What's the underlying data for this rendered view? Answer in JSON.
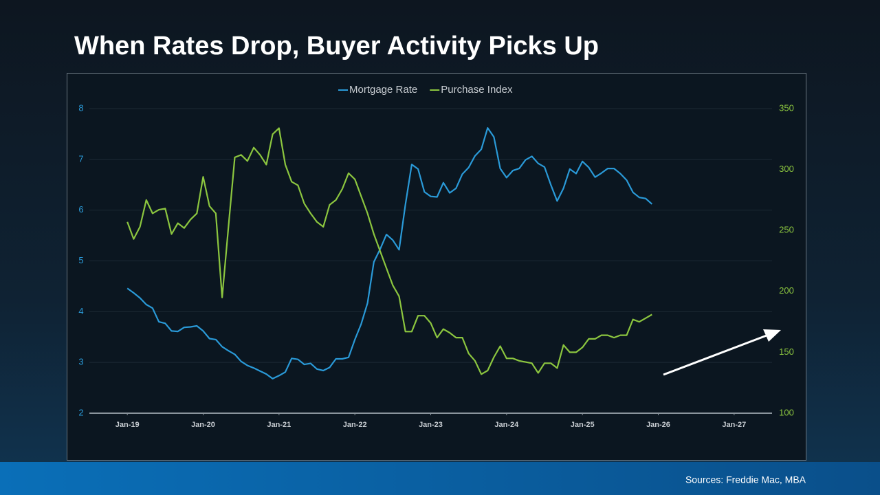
{
  "chart_data": {
    "type": "line",
    "title": "When Rates Drop, Buyer Activity Picks Up",
    "source": "Sources: Freddie Mac, MBA",
    "x": [
      "Jan-19",
      "Feb-19",
      "Mar-19",
      "Apr-19",
      "May-19",
      "Jun-19",
      "Jul-19",
      "Aug-19",
      "Sep-19",
      "Oct-19",
      "Nov-19",
      "Dec-19",
      "Jan-20",
      "Feb-20",
      "Mar-20",
      "Apr-20",
      "May-20",
      "Jun-20",
      "Jul-20",
      "Aug-20",
      "Sep-20",
      "Oct-20",
      "Nov-20",
      "Dec-20",
      "Jan-21",
      "Feb-21",
      "Mar-21",
      "Apr-21",
      "May-21",
      "Jun-21",
      "Jul-21",
      "Aug-21",
      "Sep-21",
      "Oct-21",
      "Nov-21",
      "Dec-21",
      "Jan-22",
      "Feb-22",
      "Mar-22",
      "Apr-22",
      "May-22",
      "Jun-22",
      "Jul-22",
      "Aug-22",
      "Sep-22",
      "Oct-22",
      "Nov-22",
      "Dec-22",
      "Jan-23",
      "Feb-23",
      "Mar-23",
      "Apr-23",
      "May-23",
      "Jun-23",
      "Jul-23",
      "Aug-23",
      "Sep-23",
      "Oct-23",
      "Nov-23",
      "Dec-23",
      "Jan-24",
      "Feb-24",
      "Mar-24",
      "Apr-24",
      "May-24",
      "Jun-24",
      "Jul-24",
      "Aug-24",
      "Sep-24",
      "Oct-24",
      "Nov-24",
      "Dec-24",
      "Jan-25",
      "Feb-25",
      "Mar-25",
      "Apr-25",
      "May-25",
      "Jun-25",
      "Jul-25",
      "Aug-25",
      "Sep-25",
      "Oct-25",
      "Nov-25",
      "Dec-25"
    ],
    "series": [
      {
        "name": "Mortgage Rate",
        "color": "#2a9ad8",
        "axis": "y",
        "values": [
          4.46,
          4.37,
          4.27,
          4.14,
          4.07,
          3.8,
          3.77,
          3.62,
          3.61,
          3.69,
          3.7,
          3.72,
          3.62,
          3.47,
          3.45,
          3.31,
          3.23,
          3.16,
          3.02,
          2.94,
          2.89,
          2.83,
          2.77,
          2.68,
          2.74,
          2.81,
          3.08,
          3.06,
          2.96,
          2.98,
          2.87,
          2.84,
          2.9,
          3.07,
          3.07,
          3.1,
          3.45,
          3.76,
          4.17,
          4.98,
          5.23,
          5.52,
          5.41,
          5.22,
          6.11,
          6.9,
          6.81,
          6.36,
          6.27,
          6.26,
          6.54,
          6.34,
          6.43,
          6.71,
          6.84,
          7.07,
          7.2,
          7.62,
          7.44,
          6.82,
          6.64,
          6.78,
          6.82,
          6.99,
          7.06,
          6.92,
          6.85,
          6.5,
          6.18,
          6.43,
          6.81,
          6.72,
          6.96,
          6.84,
          6.65,
          6.73,
          6.82,
          6.82,
          6.72,
          6.59,
          6.35,
          6.25,
          6.23,
          6.12
        ]
      },
      {
        "name": "Purchase Index",
        "color": "#8cc63f",
        "axis": "y2",
        "values": [
          257,
          243,
          253,
          275,
          264,
          267,
          268,
          247,
          256,
          252,
          259,
          264,
          294,
          270,
          264,
          195,
          253,
          310,
          312,
          307,
          318,
          312,
          304,
          329,
          334,
          304,
          290,
          287,
          272,
          264,
          257,
          253,
          271,
          275,
          284,
          297,
          292,
          278,
          264,
          247,
          233,
          219,
          205,
          196,
          167,
          167,
          180,
          180,
          174,
          162,
          169,
          166,
          162,
          162,
          149,
          143,
          132,
          135,
          146,
          155,
          145,
          145,
          143,
          142,
          141,
          133,
          141,
          141,
          137,
          156,
          150,
          150,
          154,
          161,
          161,
          164,
          164,
          162,
          164,
          164,
          177,
          175,
          178,
          181
        ]
      }
    ],
    "xlim": [
      "Jul-18",
      "Jul-27"
    ],
    "xticks": [
      "Jan-19",
      "Jan-20",
      "Jan-21",
      "Jan-22",
      "Jan-23",
      "Jan-24",
      "Jan-25",
      "Jan-26",
      "Jan-27"
    ],
    "ylim": [
      2,
      8
    ],
    "yticks": [
      2,
      3,
      4,
      5,
      6,
      7,
      8
    ],
    "y2lim": [
      100,
      350
    ],
    "y2ticks": [
      100,
      150,
      200,
      250,
      300,
      350
    ],
    "grid": true,
    "legend": "top"
  }
}
